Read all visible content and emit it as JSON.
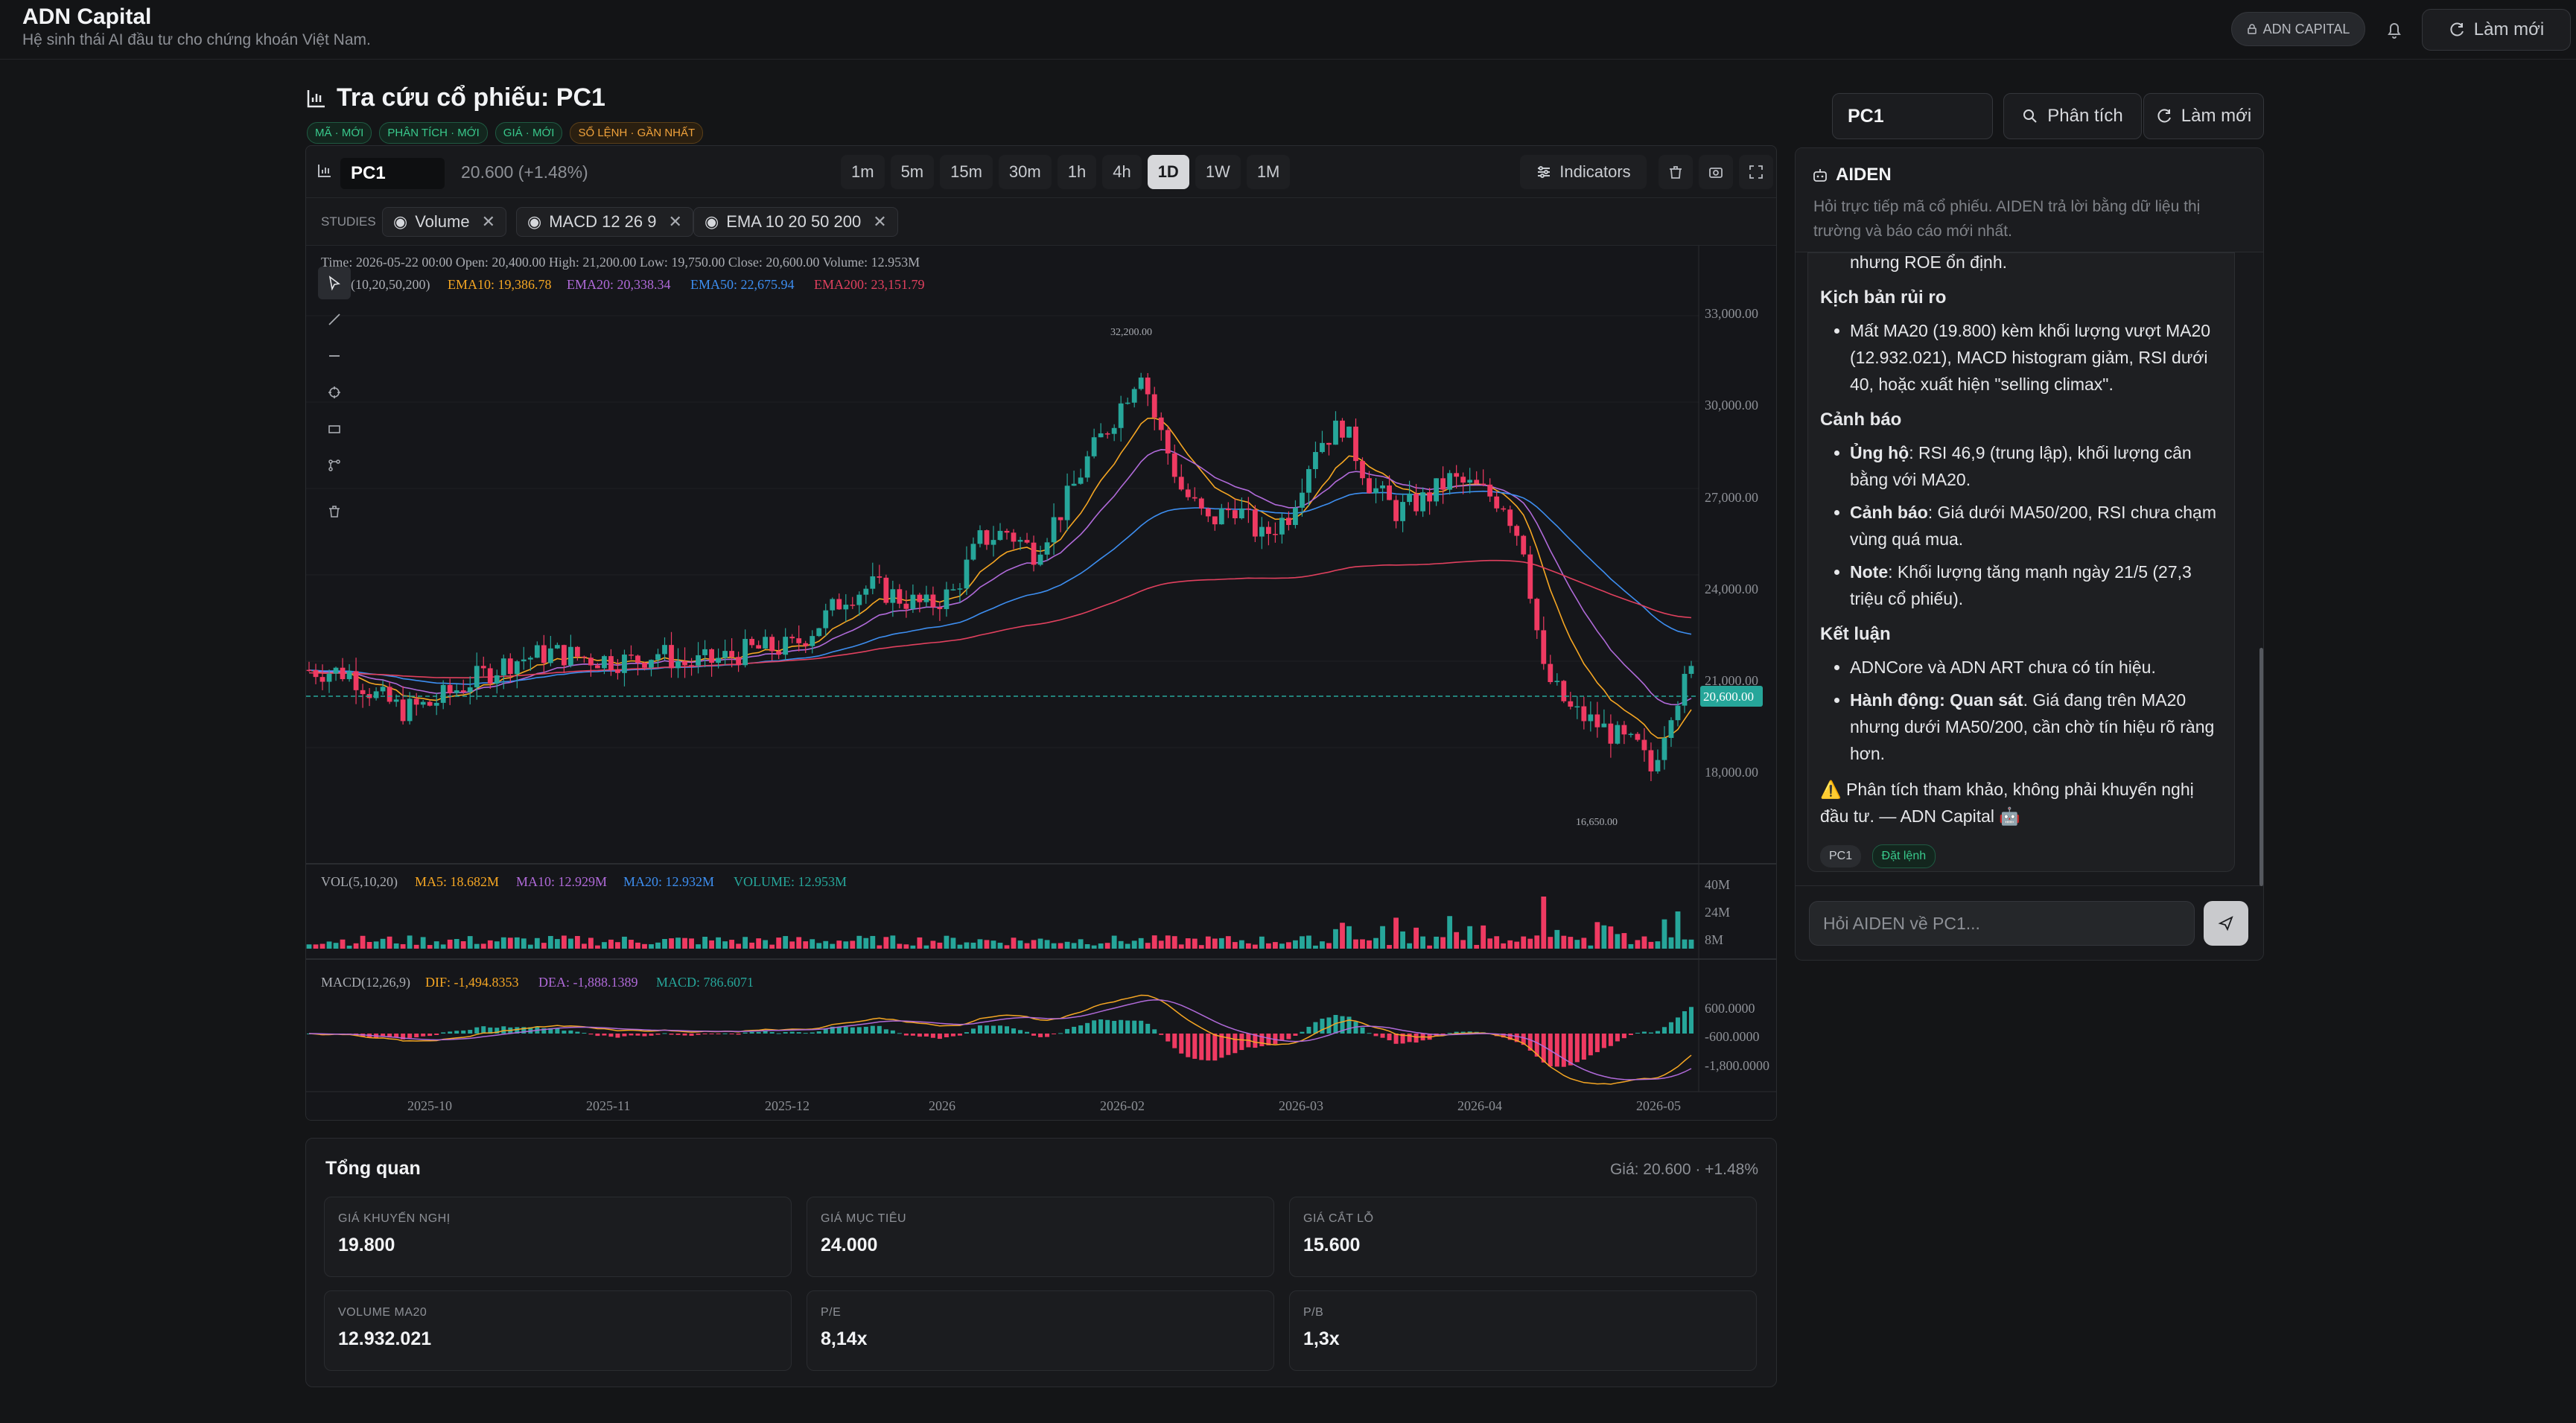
{
  "header": {
    "brand": "ADN Capital",
    "tagline": "Hệ sinh thái AI đầu tư cho chứng khoán Việt Nam.",
    "badge": "ADN CAPITAL",
    "refresh": "Làm mới"
  },
  "page": {
    "title": "Tra cứu cổ phiếu: PC1",
    "tags": [
      {
        "label": "MÃ · MỚI",
        "tone": "green"
      },
      {
        "label": "PHÂN TÍCH · MỚI",
        "tone": "green"
      },
      {
        "label": "GIÁ · MỚI",
        "tone": "green"
      },
      {
        "label": "SỔ LỆNH · GẦN NHẤT",
        "tone": "orange"
      }
    ]
  },
  "chart_toolbar": {
    "symbol": "PC1",
    "price_change": "20.600 (+1.48%)",
    "timeframes": [
      "1m",
      "5m",
      "15m",
      "30m",
      "1h",
      "4h",
      "1D",
      "1W",
      "1M"
    ],
    "active_timeframe": "1D",
    "indicators": "Indicators"
  },
  "studies": {
    "label": "STUDIES",
    "chips": [
      "Volume",
      "MACD 12 26 9",
      "EMA 10 20 50 200"
    ]
  },
  "chart_legend": {
    "ohlc": "Time: 2026-05-22 00:00    Open: 20,400.00    High: 21,200.00    Low: 19,750.00    Close: 20,600.00    Volume: 12.953M",
    "ema_prefix": "EMA(10,20,50,200)",
    "ema10": "EMA10: 19,386.78",
    "ema20": "EMA20: 20,338.34",
    "ema50": "EMA50: 22,675.94",
    "ema200": "EMA200: 23,151.79",
    "vol_prefix": "VOL(5,10,20)",
    "ma5": "MA5: 18.682M",
    "ma10": "MA10: 12.929M",
    "ma20": "MA20: 12.932M",
    "volume": "VOLUME: 12.953M",
    "macd_prefix": "MACD(12,26,9)",
    "dif": "DIF: -1,494.8353",
    "dea": "DEA: -1,888.1389",
    "macd": "MACD: 786.6071",
    "price_tag": "20,600.00",
    "high_mark": "32,200.00",
    "low_mark": "16,650.00"
  },
  "chart_data": {
    "type": "candlestick",
    "title": "",
    "price_axis": [
      "33,000.00",
      "30,000.00",
      "27,000.00",
      "24,000.00",
      "21,000.00",
      "18,000.00"
    ],
    "volume_axis": [
      "40M",
      "24M",
      "8M"
    ],
    "macd_axis": [
      "600.0000",
      "-600.0000",
      "-1,800.0000"
    ],
    "x_ticks": [
      "2025-10",
      "2025-11",
      "2025-12",
      "2026",
      "2026-02",
      "2026-03",
      "2026-04",
      "2026-05"
    ],
    "ylim": [
      15000,
      34500
    ],
    "last_close": 20600,
    "period_high": 32200,
    "period_low": 16650,
    "close_path": [
      [
        0,
        20700
      ],
      [
        6,
        20600
      ],
      [
        10,
        19800
      ],
      [
        14,
        19300
      ],
      [
        18,
        19500
      ],
      [
        24,
        20300
      ],
      [
        30,
        21000
      ],
      [
        36,
        21300
      ],
      [
        42,
        21100
      ],
      [
        48,
        21000
      ],
      [
        52,
        21300
      ],
      [
        56,
        20900
      ],
      [
        60,
        21000
      ],
      [
        66,
        21400
      ],
      [
        72,
        21500
      ],
      [
        76,
        22300
      ],
      [
        80,
        23300
      ],
      [
        84,
        23600
      ],
      [
        88,
        23200
      ],
      [
        92,
        22900
      ],
      [
        96,
        23400
      ],
      [
        100,
        25200
      ],
      [
        104,
        25500
      ],
      [
        108,
        24800
      ],
      [
        112,
        26200
      ],
      [
        116,
        28000
      ],
      [
        120,
        29500
      ],
      [
        124,
        31200
      ],
      [
        126,
        29500
      ],
      [
        130,
        27000
      ],
      [
        134,
        25800
      ],
      [
        138,
        26400
      ],
      [
        142,
        25300
      ],
      [
        146,
        26100
      ],
      [
        150,
        28500
      ],
      [
        154,
        29200
      ],
      [
        158,
        27200
      ],
      [
        162,
        26200
      ],
      [
        166,
        26600
      ],
      [
        170,
        27300
      ],
      [
        174,
        27000
      ],
      [
        178,
        26500
      ],
      [
        181,
        25000
      ],
      [
        184,
        20600
      ],
      [
        188,
        19300
      ],
      [
        192,
        18800
      ],
      [
        196,
        18200
      ],
      [
        198,
        18000
      ],
      [
        200,
        17200
      ],
      [
        203,
        19400
      ],
      [
        206,
        20600
      ]
    ],
    "ema_colors": {
      "ema10": "#f5a623",
      "ema20": "#b06ad9",
      "ema50": "#3d8ef0",
      "ema200": "#e0405e"
    },
    "up_color": "#26a69a",
    "down_color": "#ef3a62"
  },
  "aiden": {
    "title": "AIDEN",
    "desc": "Hỏi trực tiếp mã cổ phiếu. AIDEN trả lời bằng dữ liệu thị trường và báo cáo mới nhất.",
    "prev_line": "nhưng ROE ổn định.",
    "risk_title": "Kịch bản rủi ro",
    "risk_items": [
      "Mất MA20 (19.800) kèm khối lượng vượt MA20 (12.932.021), MACD histogram giảm, RSI dưới 40, hoặc xuất hiện \"selling climax\"."
    ],
    "warn_title": "Cảnh báo",
    "warn_items": [
      {
        "b": "Ủng hộ",
        "t": ": RSI 46,9 (trung lập), khối lượng cân bằng với MA20."
      },
      {
        "b": "Cảnh báo",
        "t": ": Giá dưới MA50/200, RSI chưa chạm vùng quá mua."
      },
      {
        "b": "Note",
        "t": ": Khối lượng tăng mạnh ngày 21/5 (27,3 triệu cổ phiếu)."
      }
    ],
    "concl_title": "Kết luận",
    "concl_item1": "ADNCore và ADN ART chưa có tín hiệu.",
    "concl_b": "Hành động: Quan sát",
    "concl_t": ". Giá đang trên MA20 nhưng dưới MA50/200, cần chờ tín hiệu rõ ràng hơn.",
    "disclaimer": "⚠️ Phân tích tham khảo, không phải khuyến nghị đầu tư. — ADN Capital 🤖",
    "pill1": "PC1",
    "pill2": "Đặt lệnh",
    "ask_placeholder": "Hỏi AIDEN về PC1..."
  },
  "right_controls": {
    "symbol": "PC1",
    "analyze": "Phân tích",
    "refresh": "Làm mới"
  },
  "overview": {
    "title": "Tổng quan",
    "price": "Giá: 20.600 · +1.48%",
    "cells": [
      {
        "label": "GIÁ KHUYẾN NGHỊ",
        "value": "19.800"
      },
      {
        "label": "GIÁ MỤC TIÊU",
        "value": "24.000"
      },
      {
        "label": "GIÁ CẮT LỖ",
        "value": "15.600"
      },
      {
        "label": "VOLUME MA20",
        "value": "12.932.021"
      },
      {
        "label": "P/E",
        "value": "8,14x"
      },
      {
        "label": "P/B",
        "value": "1,3x"
      }
    ]
  }
}
